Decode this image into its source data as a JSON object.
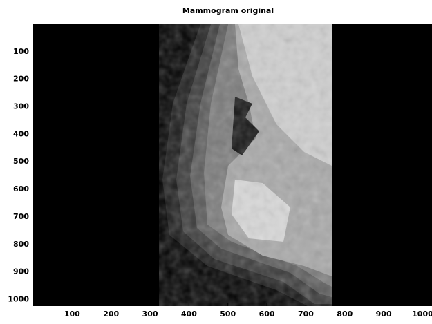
{
  "chart_data": {
    "type": "image",
    "title": "Mammogram original",
    "xlim": [
      0,
      1024
    ],
    "ylim": [
      1024,
      0
    ],
    "xticks": [
      100,
      200,
      300,
      400,
      500,
      600,
      700,
      800,
      900,
      1000
    ],
    "yticks": [
      100,
      200,
      300,
      400,
      500,
      600,
      700,
      800,
      900,
      1000
    ]
  }
}
